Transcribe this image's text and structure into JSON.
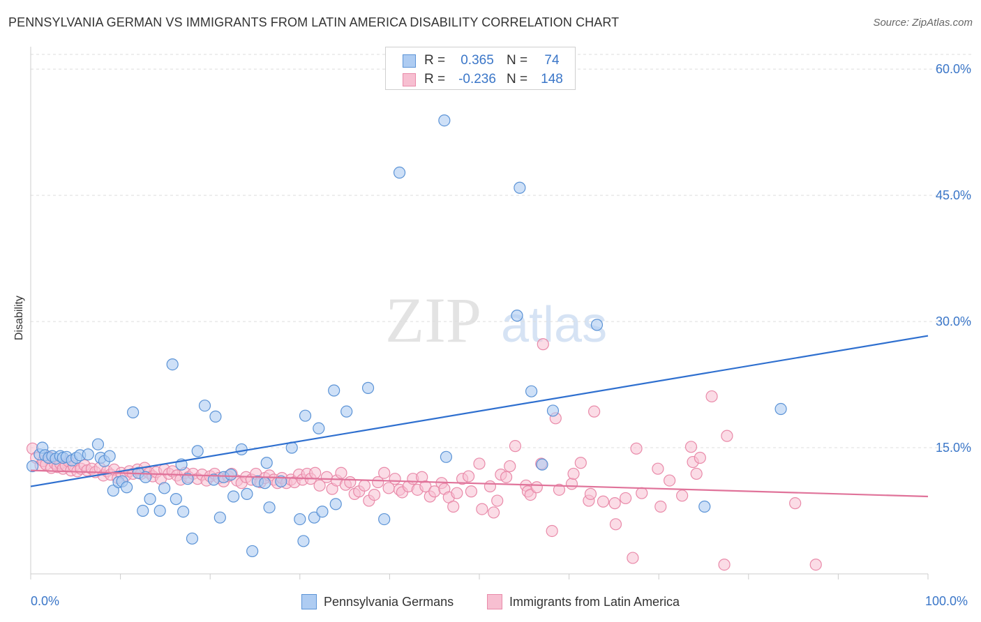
{
  "title": "PENNSYLVANIA GERMAN VS IMMIGRANTS FROM LATIN AMERICA DISABILITY CORRELATION CHART",
  "source": "Source: ZipAtlas.com",
  "watermark": {
    "zip": "ZIP",
    "atlas": "atlas"
  },
  "legend_top": {
    "rows": [
      {
        "r_label": "R =",
        "r_value": "0.365",
        "n_label": "N =",
        "n_value": "74"
      },
      {
        "r_label": "R =",
        "r_value": "-0.236",
        "n_label": "N =",
        "n_value": "148"
      }
    ]
  },
  "colors": {
    "blue_fill": "#aeccf2",
    "blue_stroke": "#5b93d6",
    "blue_line": "#2e6fcf",
    "pink_fill": "#f7bfd1",
    "pink_stroke": "#e98aa9",
    "pink_line": "#e0739a",
    "tick_label": "#3a76c8",
    "grid": "#dddddd"
  },
  "chart_data": {
    "type": "scatter",
    "title": "PENNSYLVANIA GERMAN VS IMMIGRANTS FROM LATIN AMERICA DISABILITY CORRELATION CHART",
    "xlabel": "",
    "ylabel": "Disability",
    "xlim": [
      0,
      100
    ],
    "ylim": [
      0,
      62
    ],
    "x_tick_labels": [
      "0.0%",
      "100.0%"
    ],
    "y_ticks": [
      15,
      30,
      45,
      60
    ],
    "y_tick_labels": [
      "15.0%",
      "30.0%",
      "45.0%",
      "60.0%"
    ],
    "grid": true,
    "legend_position": "bottom-center",
    "series": [
      {
        "name": "Pennsylvania Germans",
        "color": "#5b93d6",
        "R": 0.365,
        "N": 74,
        "trend": {
          "x": [
            0,
            100
          ],
          "y": [
            10.4,
            28.3
          ]
        },
        "points": [
          [
            0.2,
            12.8
          ],
          [
            1.0,
            14.2
          ],
          [
            1.3,
            15.0
          ],
          [
            1.6,
            14.1
          ],
          [
            2.0,
            13.8
          ],
          [
            2.4,
            14.0
          ],
          [
            2.8,
            13.7
          ],
          [
            3.3,
            14.0
          ],
          [
            3.6,
            13.8
          ],
          [
            4.0,
            13.9
          ],
          [
            4.6,
            13.5
          ],
          [
            5.1,
            13.8
          ],
          [
            5.5,
            14.1
          ],
          [
            6.4,
            14.2
          ],
          [
            7.5,
            15.4
          ],
          [
            7.8,
            13.8
          ],
          [
            8.2,
            13.4
          ],
          [
            8.8,
            14.0
          ],
          [
            9.2,
            9.9
          ],
          [
            9.8,
            10.9
          ],
          [
            10.2,
            11.0
          ],
          [
            10.7,
            10.3
          ],
          [
            11.4,
            19.2
          ],
          [
            12.0,
            12.0
          ],
          [
            12.5,
            7.5
          ],
          [
            12.8,
            11.5
          ],
          [
            13.3,
            8.9
          ],
          [
            14.4,
            7.5
          ],
          [
            14.9,
            10.2
          ],
          [
            15.8,
            24.9
          ],
          [
            16.2,
            8.9
          ],
          [
            16.8,
            13.0
          ],
          [
            17.0,
            7.4
          ],
          [
            17.5,
            11.3
          ],
          [
            18.0,
            4.2
          ],
          [
            18.6,
            14.6
          ],
          [
            19.4,
            20.0
          ],
          [
            20.4,
            11.2
          ],
          [
            20.6,
            18.7
          ],
          [
            21.1,
            6.7
          ],
          [
            21.5,
            11.5
          ],
          [
            22.3,
            11.8
          ],
          [
            22.6,
            9.2
          ],
          [
            23.5,
            14.8
          ],
          [
            24.1,
            9.5
          ],
          [
            24.7,
            2.7
          ],
          [
            25.3,
            11.0
          ],
          [
            26.1,
            10.8
          ],
          [
            26.3,
            13.2
          ],
          [
            26.6,
            7.9
          ],
          [
            27.9,
            11.0
          ],
          [
            29.1,
            15.0
          ],
          [
            30.0,
            6.5
          ],
          [
            30.4,
            3.9
          ],
          [
            30.6,
            18.8
          ],
          [
            31.6,
            6.7
          ],
          [
            32.1,
            17.3
          ],
          [
            32.5,
            7.4
          ],
          [
            33.8,
            21.8
          ],
          [
            34.0,
            8.3
          ],
          [
            35.2,
            19.3
          ],
          [
            37.6,
            22.1
          ],
          [
            39.4,
            6.5
          ],
          [
            41.1,
            47.7
          ],
          [
            46.1,
            53.9
          ],
          [
            46.3,
            13.9
          ],
          [
            54.2,
            30.7
          ],
          [
            54.5,
            45.9
          ],
          [
            55.8,
            21.7
          ],
          [
            57.0,
            13.0
          ],
          [
            58.2,
            19.4
          ],
          [
            63.1,
            29.6
          ],
          [
            75.1,
            8.0
          ],
          [
            83.6,
            19.6
          ]
        ]
      },
      {
        "name": "Immigrants from Latin America",
        "color": "#e98aa9",
        "R": -0.236,
        "N": 148,
        "trend": {
          "x": [
            0,
            100
          ],
          "y": [
            12.3,
            9.2
          ]
        },
        "points": [
          [
            0.2,
            14.9
          ],
          [
            0.6,
            13.8
          ],
          [
            1.1,
            12.9
          ],
          [
            1.4,
            13.4
          ],
          [
            1.7,
            13.0
          ],
          [
            2.0,
            13.9
          ],
          [
            2.3,
            12.6
          ],
          [
            2.7,
            13.1
          ],
          [
            3.0,
            12.7
          ],
          [
            3.3,
            13.1
          ],
          [
            3.6,
            12.5
          ],
          [
            3.9,
            12.9
          ],
          [
            4.2,
            13.4
          ],
          [
            4.5,
            12.3
          ],
          [
            4.8,
            12.8
          ],
          [
            5.2,
            12.2
          ],
          [
            5.6,
            12.5
          ],
          [
            6.0,
            12.9
          ],
          [
            6.3,
            12.3
          ],
          [
            6.8,
            12.5
          ],
          [
            7.2,
            12.1
          ],
          [
            7.7,
            12.6
          ],
          [
            8.1,
            11.7
          ],
          [
            8.5,
            12.2
          ],
          [
            8.9,
            11.8
          ],
          [
            9.3,
            12.4
          ],
          [
            9.7,
            11.4
          ],
          [
            10.1,
            12.0
          ],
          [
            10.6,
            11.7
          ],
          [
            11.0,
            12.2
          ],
          [
            11.4,
            11.9
          ],
          [
            11.9,
            12.4
          ],
          [
            12.3,
            11.9
          ],
          [
            12.7,
            12.6
          ],
          [
            13.2,
            12.0
          ],
          [
            13.6,
            11.6
          ],
          [
            14.0,
            12.1
          ],
          [
            14.5,
            11.3
          ],
          [
            14.9,
            12.4
          ],
          [
            15.4,
            11.9
          ],
          [
            15.8,
            12.2
          ],
          [
            16.3,
            11.7
          ],
          [
            16.7,
            11.2
          ],
          [
            17.2,
            12.0
          ],
          [
            17.6,
            11.5
          ],
          [
            18.1,
            11.9
          ],
          [
            18.6,
            11.3
          ],
          [
            19.1,
            11.8
          ],
          [
            19.6,
            11.1
          ],
          [
            20.0,
            11.6
          ],
          [
            20.5,
            11.9
          ],
          [
            21.0,
            11.4
          ],
          [
            21.5,
            11.0
          ],
          [
            22.0,
            11.6
          ],
          [
            22.4,
            11.9
          ],
          [
            23.0,
            11.1
          ],
          [
            23.5,
            10.8
          ],
          [
            24.0,
            11.5
          ],
          [
            24.6,
            11.2
          ],
          [
            25.1,
            11.9
          ],
          [
            25.6,
            10.9
          ],
          [
            26.1,
            11.4
          ],
          [
            26.6,
            11.7
          ],
          [
            27.1,
            11.2
          ],
          [
            27.5,
            10.8
          ],
          [
            28.0,
            11.4
          ],
          [
            28.5,
            10.8
          ],
          [
            29.0,
            11.2
          ],
          [
            29.4,
            10.9
          ],
          [
            29.9,
            11.8
          ],
          [
            30.3,
            11.2
          ],
          [
            30.8,
            11.9
          ],
          [
            31.2,
            11.3
          ],
          [
            31.7,
            12.0
          ],
          [
            32.2,
            10.5
          ],
          [
            33.0,
            11.5
          ],
          [
            33.6,
            10.1
          ],
          [
            34.1,
            11.1
          ],
          [
            34.6,
            12.0
          ],
          [
            35.1,
            10.6
          ],
          [
            35.6,
            10.9
          ],
          [
            36.1,
            9.5
          ],
          [
            36.6,
            9.8
          ],
          [
            37.2,
            10.5
          ],
          [
            37.7,
            8.7
          ],
          [
            38.3,
            9.4
          ],
          [
            38.7,
            10.9
          ],
          [
            39.4,
            12.0
          ],
          [
            39.9,
            10.2
          ],
          [
            40.6,
            11.3
          ],
          [
            41.1,
            10.0
          ],
          [
            41.4,
            9.7
          ],
          [
            42.1,
            10.4
          ],
          [
            42.6,
            11.3
          ],
          [
            43.1,
            10.0
          ],
          [
            43.6,
            11.5
          ],
          [
            44.0,
            10.4
          ],
          [
            44.5,
            9.2
          ],
          [
            45.0,
            9.8
          ],
          [
            45.8,
            10.8
          ],
          [
            46.1,
            10.1
          ],
          [
            46.6,
            9.1
          ],
          [
            47.1,
            8.0
          ],
          [
            47.5,
            9.6
          ],
          [
            48.1,
            11.3
          ],
          [
            48.8,
            11.6
          ],
          [
            49.1,
            9.8
          ],
          [
            50.0,
            13.1
          ],
          [
            50.3,
            7.7
          ],
          [
            51.2,
            10.4
          ],
          [
            51.6,
            7.3
          ],
          [
            52.0,
            8.7
          ],
          [
            52.4,
            11.8
          ],
          [
            53.0,
            11.5
          ],
          [
            53.4,
            12.8
          ],
          [
            54.0,
            15.2
          ],
          [
            55.2,
            10.5
          ],
          [
            55.4,
            9.8
          ],
          [
            55.7,
            9.4
          ],
          [
            56.4,
            10.3
          ],
          [
            56.9,
            13.1
          ],
          [
            57.1,
            27.3
          ],
          [
            58.1,
            5.1
          ],
          [
            58.5,
            18.5
          ],
          [
            58.9,
            10.0
          ],
          [
            60.3,
            10.7
          ],
          [
            60.5,
            11.9
          ],
          [
            61.3,
            13.2
          ],
          [
            62.2,
            8.7
          ],
          [
            62.4,
            9.5
          ],
          [
            62.8,
            19.3
          ],
          [
            63.8,
            8.6
          ],
          [
            65.1,
            8.4
          ],
          [
            65.2,
            5.9
          ],
          [
            66.3,
            9.0
          ],
          [
            67.1,
            1.9
          ],
          [
            67.5,
            14.9
          ],
          [
            68.1,
            9.6
          ],
          [
            69.9,
            12.5
          ],
          [
            70.2,
            8.0
          ],
          [
            71.2,
            11.1
          ],
          [
            72.6,
            9.3
          ],
          [
            73.6,
            15.1
          ],
          [
            73.8,
            13.3
          ],
          [
            74.6,
            13.8
          ],
          [
            74.2,
            11.9
          ],
          [
            75.9,
            21.1
          ],
          [
            77.6,
            16.4
          ],
          [
            77.3,
            1.1
          ],
          [
            87.5,
            1.1
          ],
          [
            85.2,
            8.4
          ]
        ]
      }
    ]
  },
  "bottom_legend": [
    {
      "label": "Pennsylvania Germans"
    },
    {
      "label": "Immigrants from Latin America"
    }
  ]
}
